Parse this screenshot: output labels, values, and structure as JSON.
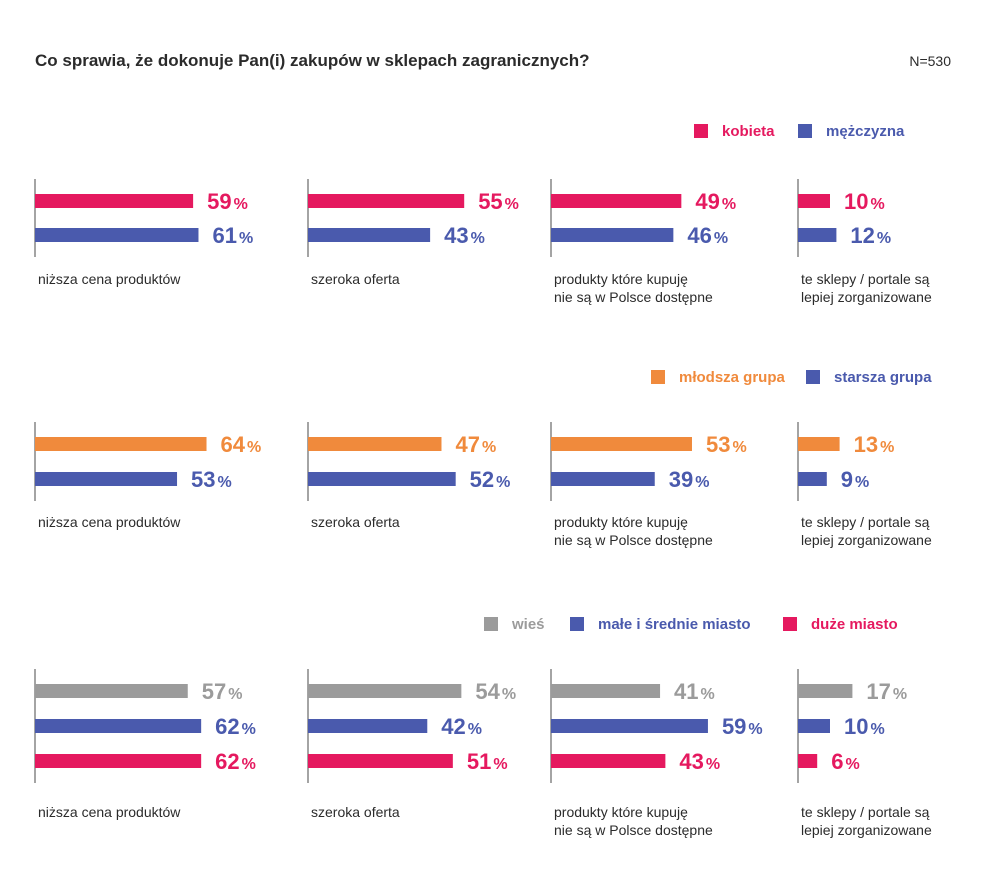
{
  "title": "Co sprawia, że dokonuje Pan(i) zakupów w sklepach zagranicznych?",
  "sample_size": "N=530",
  "percent_sign": "%",
  "chart_data": [
    {
      "type": "bar",
      "orientation": "horizontal",
      "categories": [
        "niższa cena produktów",
        "szeroka oferta",
        "produkty które kupuję nie są w Polsce dostępne",
        "te sklepy / portale są lepiej zorganizowane"
      ],
      "category_lines": [
        [
          "niższa cena produktów"
        ],
        [
          "szeroka oferta"
        ],
        [
          "produkty które kupuję",
          "nie są w Polsce dostępne"
        ],
        [
          "te sklepy / portale są",
          "lepiej zorganizowane"
        ]
      ],
      "series": [
        {
          "name": "kobieta",
          "color": "#e5195f",
          "values": [
            59,
            55,
            49,
            10
          ]
        },
        {
          "name": "mężczyzna",
          "color": "#4a5aad",
          "values": [
            61,
            43,
            46,
            12
          ]
        }
      ],
      "unit": "%",
      "legend_position": "top-right",
      "grid": false
    },
    {
      "type": "bar",
      "orientation": "horizontal",
      "categories": [
        "niższa cena produktów",
        "szeroka oferta",
        "produkty które kupuję nie są w Polsce dostępne",
        "te sklepy / portale są lepiej zorganizowane"
      ],
      "category_lines": [
        [
          "niższa cena produktów"
        ],
        [
          "szeroka oferta"
        ],
        [
          "produkty które kupuję",
          "nie są w Polsce dostępne"
        ],
        [
          "te sklepy / portale są",
          "lepiej zorganizowane"
        ]
      ],
      "series": [
        {
          "name": "młodsza grupa",
          "color": "#f08a3c",
          "values": [
            64,
            47,
            53,
            13
          ]
        },
        {
          "name": "starsza grupa",
          "color": "#4a5aad",
          "values": [
            53,
            52,
            39,
            9
          ]
        }
      ],
      "unit": "%",
      "legend_position": "top-right",
      "grid": false
    },
    {
      "type": "bar",
      "orientation": "horizontal",
      "categories": [
        "niższa cena produktów",
        "szeroka oferta",
        "produkty które kupuję nie są w Polsce dostępne",
        "te sklepy / portale są lepiej zorganizowane"
      ],
      "category_lines": [
        [
          "niższa cena produktów"
        ],
        [
          "szeroka oferta"
        ],
        [
          "produkty które kupuję",
          "nie są w Polsce dostępne"
        ],
        [
          "te sklepy / portale są",
          "lepiej zorganizowane"
        ]
      ],
      "series": [
        {
          "name": "wieś",
          "color": "#9b9b9b",
          "values": [
            57,
            54,
            41,
            17
          ]
        },
        {
          "name": "małe i średnie miasto",
          "color": "#4a5aad",
          "values": [
            62,
            42,
            59,
            10
          ]
        },
        {
          "name": "duże miasto",
          "color": "#e5195f",
          "values": [
            62,
            51,
            43,
            6
          ]
        }
      ],
      "unit": "%",
      "legend_position": "top-right",
      "grid": false
    }
  ]
}
